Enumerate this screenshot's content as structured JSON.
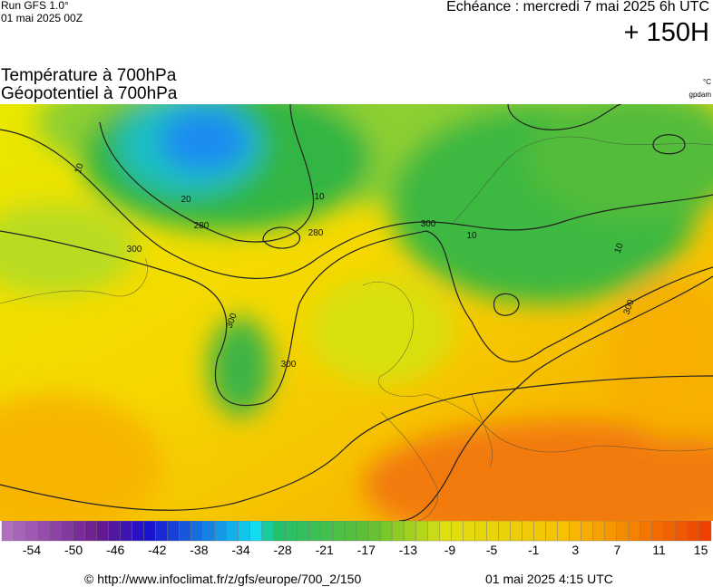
{
  "header": {
    "run": "Run GFS 1.0°",
    "run_date": "01 mai 2025 00Z",
    "valid": "Echéance : mercredi 7 mai 2025 6h UTC",
    "lead": "+ 150H",
    "title_1": "Température à 700hPa",
    "title_2": "Géopotentiel à 700hPa",
    "unit_1": "°C",
    "unit_2": "gpdam"
  },
  "map": {
    "contour_labels": [
      {
        "text": "300"
      },
      {
        "text": "300"
      },
      {
        "text": "300"
      },
      {
        "text": "300"
      },
      {
        "text": "300"
      },
      {
        "text": "280"
      },
      {
        "text": "280"
      },
      {
        "text": "10"
      },
      {
        "text": "10"
      },
      {
        "text": "10"
      },
      {
        "text": "10"
      },
      {
        "text": "20"
      }
    ]
  },
  "colorbar": {
    "labels": [
      "-54",
      "-50",
      "-46",
      "-42",
      "-38",
      "-34",
      "-28",
      "-21",
      "-17",
      "-13",
      "-9",
      "-5",
      "-1",
      "3",
      "7",
      "11",
      "15"
    ]
  },
  "footer": {
    "source": "© http://www.infoclimat.fr/z/gfs/europe/700_2/150",
    "generated": "01 mai 2025  4:15 UTC"
  }
}
